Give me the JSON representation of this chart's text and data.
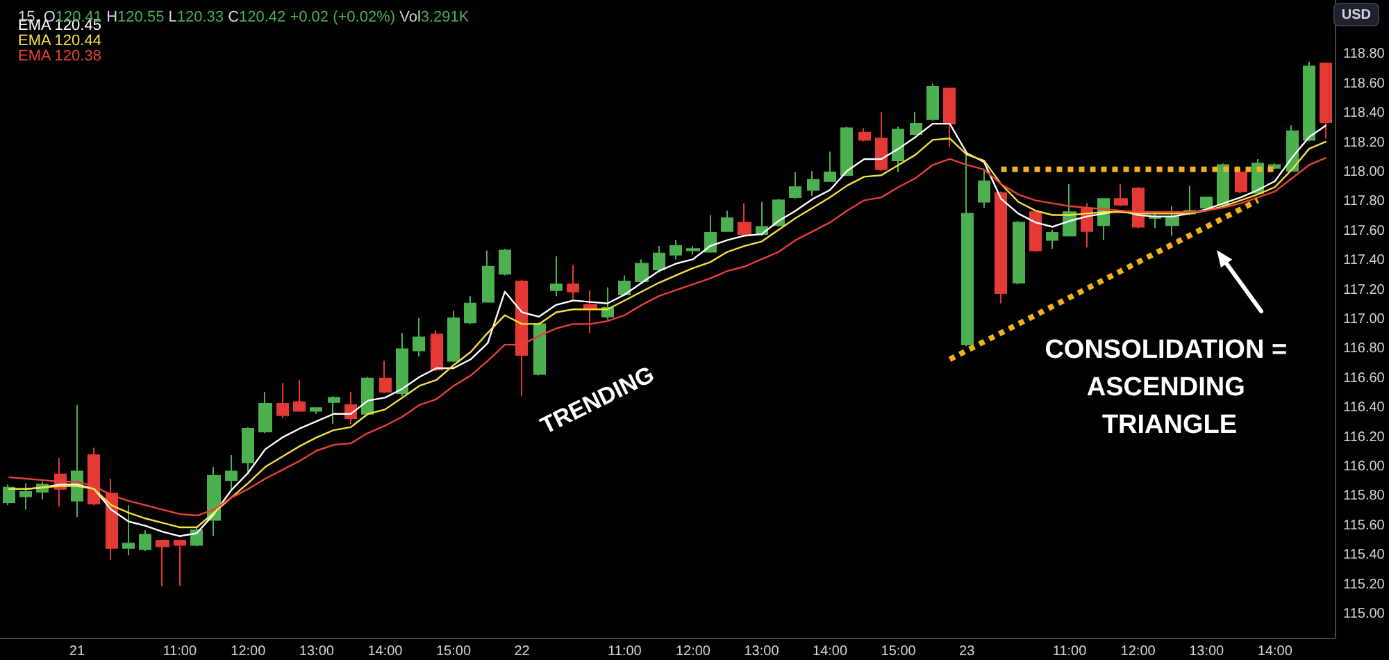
{
  "chart_data": {
    "type": "candlestick",
    "title": "15, O120.41 H120.55 L120.33 C120.42 +0.02 (+0.02%) Vol3.291K",
    "ylabel": "USD",
    "categories": [
      null,
      null,
      null,
      null,
      "21",
      null,
      null,
      null,
      null,
      null,
      "11:00",
      null,
      null,
      null,
      "12:00",
      null,
      null,
      null,
      "13:00",
      null,
      null,
      null,
      "14:00",
      null,
      null,
      null,
      "15:00",
      null,
      null,
      null,
      "22",
      null,
      null,
      null,
      null,
      null,
      "11:00",
      null,
      null,
      null,
      "12:00",
      null,
      null,
      null,
      "13:00",
      null,
      null,
      null,
      "14:00",
      null,
      null,
      null,
      "15:00",
      null,
      null,
      null,
      "23",
      null,
      null,
      null,
      null,
      null,
      "11:00",
      null,
      null,
      null,
      "12:00",
      null,
      null,
      null,
      "13:00",
      null,
      null,
      null,
      "14:00",
      null,
      null,
      null
    ],
    "ohlc": [
      [
        115.76,
        115.88,
        115.74,
        115.86
      ],
      [
        115.8,
        115.89,
        115.71,
        115.83
      ],
      [
        115.83,
        115.9,
        115.78,
        115.88
      ],
      [
        115.95,
        116.06,
        115.73,
        115.85
      ],
      [
        115.77,
        116.42,
        115.66,
        115.97
      ],
      [
        116.08,
        116.13,
        115.74,
        115.75
      ],
      [
        115.82,
        115.92,
        115.37,
        115.45
      ],
      [
        115.45,
        115.74,
        115.4,
        115.48
      ],
      [
        115.44,
        115.57,
        115.43,
        115.54
      ],
      [
        115.5,
        115.5,
        115.19,
        115.46
      ],
      [
        115.5,
        115.5,
        115.19,
        115.47
      ],
      [
        115.47,
        115.59,
        115.46,
        115.57
      ],
      [
        115.64,
        116.0,
        115.53,
        115.94
      ],
      [
        115.91,
        116.08,
        115.84,
        115.97
      ],
      [
        116.03,
        116.27,
        115.96,
        116.26
      ],
      [
        116.24,
        116.51,
        116.23,
        116.43
      ],
      [
        116.43,
        116.57,
        116.33,
        116.35
      ],
      [
        116.44,
        116.59,
        116.38,
        116.38
      ],
      [
        116.38,
        116.4,
        116.36,
        116.4
      ],
      [
        116.44,
        116.48,
        116.29,
        116.47
      ],
      [
        116.42,
        116.51,
        116.29,
        116.33
      ],
      [
        116.36,
        116.61,
        116.35,
        116.6
      ],
      [
        116.6,
        116.72,
        116.5,
        116.51
      ],
      [
        116.5,
        116.91,
        116.48,
        116.8
      ],
      [
        116.79,
        117.01,
        116.75,
        116.88
      ],
      [
        116.9,
        116.93,
        116.65,
        116.66
      ],
      [
        116.72,
        117.06,
        116.71,
        117.01
      ],
      [
        116.98,
        117.16,
        116.97,
        117.11
      ],
      [
        117.12,
        117.47,
        117.12,
        117.36
      ],
      [
        117.31,
        117.48,
        117.3,
        117.47
      ],
      [
        117.26,
        117.27,
        116.48,
        116.76
      ],
      [
        116.63,
        116.98,
        116.62,
        116.97
      ],
      [
        117.2,
        117.43,
        117.16,
        117.24
      ],
      [
        117.24,
        117.37,
        117.14,
        117.19
      ],
      [
        117.1,
        117.2,
        116.91,
        117.07
      ],
      [
        117.02,
        117.22,
        117.0,
        117.08
      ],
      [
        117.17,
        117.3,
        117.16,
        117.26
      ],
      [
        117.26,
        117.41,
        117.25,
        117.38
      ],
      [
        117.34,
        117.5,
        117.32,
        117.45
      ],
      [
        117.44,
        117.54,
        117.41,
        117.5
      ],
      [
        117.47,
        117.5,
        117.44,
        117.48
      ],
      [
        117.46,
        117.71,
        117.46,
        117.59
      ],
      [
        117.6,
        117.74,
        117.6,
        117.69
      ],
      [
        117.66,
        117.79,
        117.58,
        117.58
      ],
      [
        117.58,
        117.8,
        117.57,
        117.63
      ],
      [
        117.64,
        117.82,
        117.63,
        117.81
      ],
      [
        117.83,
        118.0,
        117.82,
        117.9
      ],
      [
        117.88,
        118.01,
        117.84,
        117.95
      ],
      [
        117.94,
        118.14,
        117.94,
        118.0
      ],
      [
        117.98,
        118.31,
        117.98,
        118.3
      ],
      [
        118.27,
        118.3,
        118.21,
        118.22
      ],
      [
        118.23,
        118.41,
        118.01,
        118.02
      ],
      [
        118.08,
        118.31,
        118.0,
        118.29
      ],
      [
        118.26,
        118.41,
        118.25,
        118.33
      ],
      [
        118.36,
        118.6,
        118.35,
        118.58
      ],
      [
        118.57,
        118.57,
        118.17,
        118.33
      ],
      [
        116.83,
        118.13,
        116.82,
        117.72
      ],
      [
        117.8,
        118.02,
        117.76,
        117.94
      ],
      [
        117.86,
        117.87,
        117.11,
        117.18
      ],
      [
        117.25,
        117.67,
        117.24,
        117.66
      ],
      [
        117.73,
        117.73,
        117.46,
        117.47
      ],
      [
        117.54,
        117.61,
        117.48,
        117.59
      ],
      [
        117.57,
        117.92,
        117.57,
        117.73
      ],
      [
        117.75,
        117.79,
        117.49,
        117.6
      ],
      [
        117.64,
        117.82,
        117.54,
        117.82
      ],
      [
        117.82,
        117.92,
        117.77,
        117.78
      ],
      [
        117.89,
        117.9,
        117.62,
        117.63
      ],
      [
        117.69,
        117.72,
        117.62,
        117.7
      ],
      [
        117.64,
        117.77,
        117.57,
        117.7
      ],
      [
        117.72,
        117.91,
        117.71,
        117.74
      ],
      [
        117.76,
        117.83,
        117.75,
        117.83
      ],
      [
        117.78,
        118.06,
        117.77,
        118.05
      ],
      [
        118.0,
        118.03,
        117.86,
        117.87
      ],
      [
        117.86,
        118.09,
        117.85,
        118.06
      ],
      [
        118.03,
        118.06,
        118.02,
        118.05
      ],
      [
        118.01,
        118.32,
        118.01,
        118.28
      ],
      [
        118.22,
        118.75,
        118.21,
        118.72
      ],
      [
        118.74,
        118.74,
        118.23,
        118.34
      ]
    ],
    "colors": [
      "#4caf50",
      "#4caf50",
      "#4caf50",
      "#e53935",
      "#4caf50",
      "#e53935",
      "#e53935",
      "#4caf50",
      "#4caf50",
      "#e53935",
      "#e53935",
      "#4caf50",
      "#4caf50",
      "#4caf50",
      "#4caf50",
      "#4caf50",
      "#e53935",
      "#e53935",
      "#4caf50",
      "#4caf50",
      "#e53935",
      "#4caf50",
      "#e53935",
      "#4caf50",
      "#4caf50",
      "#e53935",
      "#4caf50",
      "#4caf50",
      "#4caf50",
      "#4caf50",
      "#e53935",
      "#4caf50",
      "#4caf50",
      "#e53935",
      "#e53935",
      "#4caf50",
      "#4caf50",
      "#4caf50",
      "#4caf50",
      "#4caf50",
      "#4caf50",
      "#4caf50",
      "#4caf50",
      "#e53935",
      "#4caf50",
      "#4caf50",
      "#4caf50",
      "#4caf50",
      "#4caf50",
      "#4caf50",
      "#e53935",
      "#e53935",
      "#4caf50",
      "#4caf50",
      "#4caf50",
      "#e53935",
      "#4caf50",
      "#4caf50",
      "#e53935",
      "#4caf50",
      "#e53935",
      "#4caf50",
      "#4caf50",
      "#e53935",
      "#4caf50",
      "#e53935",
      "#e53935",
      "#4caf50",
      "#4caf50",
      "#4caf50",
      "#4caf50",
      "#4caf50",
      "#e53935",
      "#4caf50",
      "#4caf50",
      "#4caf50",
      "#4caf50",
      "#e53935"
    ],
    "series": [
      {
        "type": "line",
        "name": "EMA 120.45",
        "color": "#ffffff",
        "values": [
          115.85,
          115.85,
          115.86,
          115.88,
          115.88,
          115.85,
          115.71,
          115.63,
          115.6,
          115.56,
          115.53,
          115.55,
          115.68,
          115.84,
          115.96,
          116.12,
          116.2,
          116.26,
          116.31,
          116.36,
          116.36,
          116.45,
          116.47,
          116.53,
          116.61,
          116.67,
          116.67,
          116.73,
          116.84,
          117.19,
          117.05,
          117.02,
          117.1,
          117.13,
          117.12,
          117.11,
          117.17,
          117.25,
          117.33,
          117.38,
          117.41,
          117.5,
          117.54,
          117.57,
          117.58,
          117.67,
          117.74,
          117.82,
          117.88,
          118.01,
          118.09,
          118.09,
          118.16,
          118.24,
          118.33,
          118.33,
          118.13,
          118.07,
          117.82,
          117.72,
          117.66,
          117.63,
          117.67,
          117.7,
          117.72,
          117.74,
          117.71,
          117.7,
          117.7,
          117.72,
          117.75,
          117.79,
          117.83,
          117.88,
          117.94,
          118.1,
          118.24,
          118.32
        ]
      },
      {
        "type": "line",
        "name": "EMA 120.44",
        "color": "#f7e03c",
        "values": [
          115.85,
          115.85,
          115.86,
          115.87,
          115.87,
          115.85,
          115.74,
          115.69,
          115.65,
          115.62,
          115.59,
          115.59,
          115.69,
          115.79,
          115.89,
          116.0,
          116.07,
          116.14,
          116.2,
          116.25,
          116.27,
          116.36,
          116.39,
          116.47,
          116.55,
          116.59,
          116.69,
          116.78,
          116.91,
          117.03,
          116.97,
          116.97,
          117.05,
          117.07,
          117.07,
          117.07,
          117.13,
          117.19,
          117.25,
          117.3,
          117.35,
          117.39,
          117.46,
          117.5,
          117.53,
          117.61,
          117.69,
          117.76,
          117.83,
          117.91,
          117.97,
          117.98,
          118.05,
          118.12,
          118.22,
          118.23,
          118.12,
          118.08,
          117.92,
          117.8,
          117.74,
          117.71,
          117.71,
          117.72,
          117.73,
          117.73,
          117.72,
          117.72,
          117.72,
          117.72,
          117.74,
          117.77,
          117.81,
          117.85,
          117.9,
          118.02,
          118.16,
          118.21
        ]
      },
      {
        "type": "line",
        "name": "EMA 120.38",
        "color": "#e8403a",
        "values": [
          115.93,
          115.92,
          115.91,
          115.9,
          115.9,
          115.87,
          115.81,
          115.77,
          115.74,
          115.71,
          115.68,
          115.67,
          115.71,
          115.79,
          115.85,
          115.92,
          115.98,
          116.04,
          116.11,
          116.15,
          116.16,
          116.23,
          116.28,
          116.34,
          116.42,
          116.46,
          116.55,
          116.62,
          116.72,
          116.83,
          116.83,
          116.89,
          116.94,
          116.97,
          116.97,
          116.99,
          117.03,
          117.1,
          117.16,
          117.2,
          117.24,
          117.28,
          117.33,
          117.36,
          117.41,
          117.46,
          117.54,
          117.6,
          117.66,
          117.74,
          117.81,
          117.83,
          117.9,
          117.96,
          118.05,
          118.09,
          118.05,
          118.02,
          117.92,
          117.85,
          117.81,
          117.79,
          117.77,
          117.76,
          117.75,
          117.74,
          117.73,
          117.73,
          117.73,
          117.73,
          117.74,
          117.76,
          117.79,
          117.83,
          117.87,
          117.96,
          118.05,
          118.1
        ]
      },
      {
        "type": "line",
        "color": "#f2b01e",
        "line_style": "dotted",
        "values": [
          null,
          null,
          null,
          null,
          null,
          null,
          null,
          null,
          null,
          null,
          null,
          null,
          null,
          null,
          null,
          null,
          null,
          null,
          null,
          null,
          null,
          null,
          null,
          null,
          null,
          null,
          null,
          null,
          null,
          null,
          null,
          null,
          null,
          null,
          null,
          null,
          null,
          null,
          null,
          null,
          null,
          null,
          null,
          null,
          null,
          null,
          null,
          null,
          null,
          null,
          null,
          null,
          null,
          null,
          null,
          116.73,
          null,
          null,
          null,
          null,
          null,
          null,
          null,
          null,
          null,
          null,
          null,
          null,
          null,
          null,
          null,
          null,
          null,
          117.81,
          null,
          null,
          null,
          null
        ]
      },
      {
        "type": "line",
        "color": "#f2b01e",
        "line_style": "dotted",
        "values": [
          null,
          null,
          null,
          null,
          null,
          null,
          null,
          null,
          null,
          null,
          null,
          null,
          null,
          null,
          null,
          null,
          null,
          null,
          null,
          null,
          null,
          null,
          null,
          null,
          null,
          null,
          null,
          null,
          null,
          null,
          null,
          null,
          null,
          null,
          null,
          null,
          null,
          null,
          null,
          null,
          null,
          null,
          null,
          null,
          null,
          null,
          null,
          null,
          null,
          null,
          null,
          null,
          null,
          null,
          null,
          null,
          null,
          null,
          118.02,
          null,
          null,
          null,
          null,
          null,
          null,
          null,
          null,
          null,
          null,
          null,
          null,
          null,
          null,
          null,
          118.02,
          null,
          null,
          null
        ]
      }
    ],
    "ylim": [
      114.84,
      119.17
    ],
    "yticks": [
      {
        "value": 115.0,
        "label": "115.00"
      },
      {
        "value": 115.2,
        "label": "115.20"
      },
      {
        "value": 115.4,
        "label": "115.40"
      },
      {
        "value": 115.6,
        "label": "115.60"
      },
      {
        "value": 115.8,
        "label": "115.80"
      },
      {
        "value": 116.0,
        "label": "116.00"
      },
      {
        "value": 116.2,
        "label": "116.20"
      },
      {
        "value": 116.4,
        "label": "116.40"
      },
      {
        "value": 116.6,
        "label": "116.60"
      },
      {
        "value": 116.8,
        "label": "116.80"
      },
      {
        "value": 117.0,
        "label": "117.00"
      },
      {
        "value": 117.2,
        "label": "117.20"
      },
      {
        "value": 117.4,
        "label": "117.40"
      },
      {
        "value": 117.6,
        "label": "117.60"
      },
      {
        "value": 117.8,
        "label": "117.80"
      },
      {
        "value": 118.0,
        "label": "118.00"
      },
      {
        "value": 118.2,
        "label": "118.20"
      },
      {
        "value": 118.4,
        "label": "118.40"
      },
      {
        "value": 118.6,
        "label": "118.60"
      },
      {
        "value": 118.8,
        "label": "118.80"
      }
    ],
    "grid": false,
    "legend": "top left",
    "annotations": [
      "TRENDING",
      "CONSOLIDATION = ASCENDING TRIANGLE"
    ]
  }
}
